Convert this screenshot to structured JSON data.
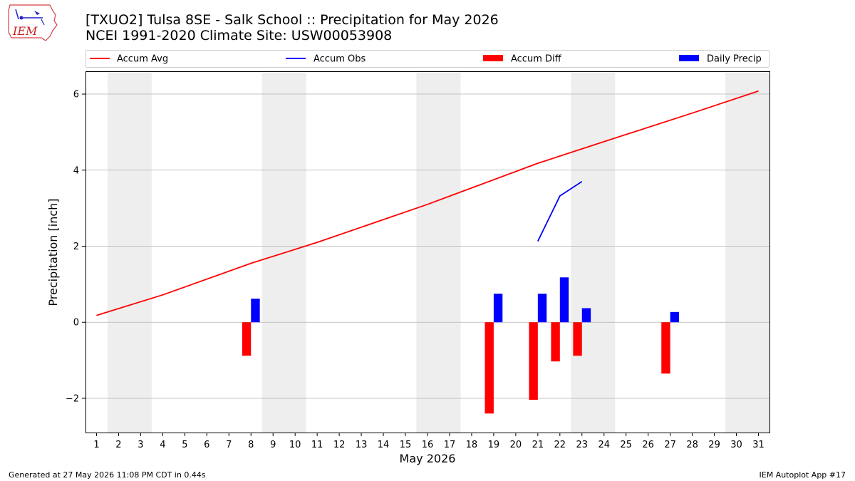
{
  "title_line1": "[TXUO2] Tulsa 8SE - Salk School :: Precipitation for May 2026",
  "title_line2": "NCEI 1991-2020 Climate Site: USW00053908",
  "logo_text": "IEM",
  "footer_left": "Generated at 27 May 2026 11:08 PM CDT in 0.44s",
  "footer_right": "IEM Autoplot App #17",
  "colors": {
    "accum_avg": "#ff0000",
    "accum_obs": "#0000ff",
    "accum_diff": "#ff0000",
    "daily_precip": "#0000ff",
    "weekend_shade": "#eeeeee",
    "grid": "#b0b0b0"
  },
  "chart_data": {
    "type": "bar",
    "xlabel": "May 2026",
    "ylabel": "Precipitation [inch]",
    "xlim": [
      0.5,
      31.5
    ],
    "ylim": [
      -2.9,
      6.6
    ],
    "yticks": [
      -2,
      0,
      2,
      4,
      6
    ],
    "ytick_labels": [
      "−2",
      "0",
      "2",
      "4",
      "6"
    ],
    "xticks": [
      "1",
      "2",
      "3",
      "4",
      "5",
      "6",
      "7",
      "8",
      "9",
      "10",
      "11",
      "12",
      "13",
      "14",
      "15",
      "16",
      "17",
      "18",
      "19",
      "20",
      "21",
      "22",
      "23",
      "24",
      "25",
      "26",
      "27",
      "28",
      "29",
      "30",
      "31"
    ],
    "grid": "horizontal",
    "legend": "top, outside, 4 columns",
    "weekend_bands": [
      [
        2,
        3
      ],
      [
        9,
        10
      ],
      [
        16,
        17
      ],
      [
        23,
        24
      ],
      [
        30,
        31
      ]
    ],
    "series": [
      {
        "name": "Accum Avg",
        "kind": "line",
        "x": [
          1,
          4,
          8,
          11,
          16,
          21,
          24,
          28,
          31
        ],
        "y": [
          0.18,
          0.72,
          1.55,
          2.1,
          3.1,
          4.18,
          4.75,
          5.5,
          6.08
        ]
      },
      {
        "name": "Accum Obs",
        "kind": "line",
        "x": [
          21,
          22,
          23
        ],
        "y": [
          2.13,
          3.32,
          3.7
        ]
      },
      {
        "name": "Accum Diff",
        "kind": "bar",
        "x": [
          8,
          19,
          21,
          22,
          23,
          27
        ],
        "y": [
          -0.88,
          -2.4,
          -2.04,
          -1.03,
          -0.88,
          -1.35
        ]
      },
      {
        "name": "Daily Precip",
        "kind": "bar",
        "x": [
          8,
          19,
          21,
          22,
          23,
          27
        ],
        "y": [
          0.62,
          0.75,
          0.75,
          1.18,
          0.37,
          0.27
        ]
      }
    ]
  }
}
